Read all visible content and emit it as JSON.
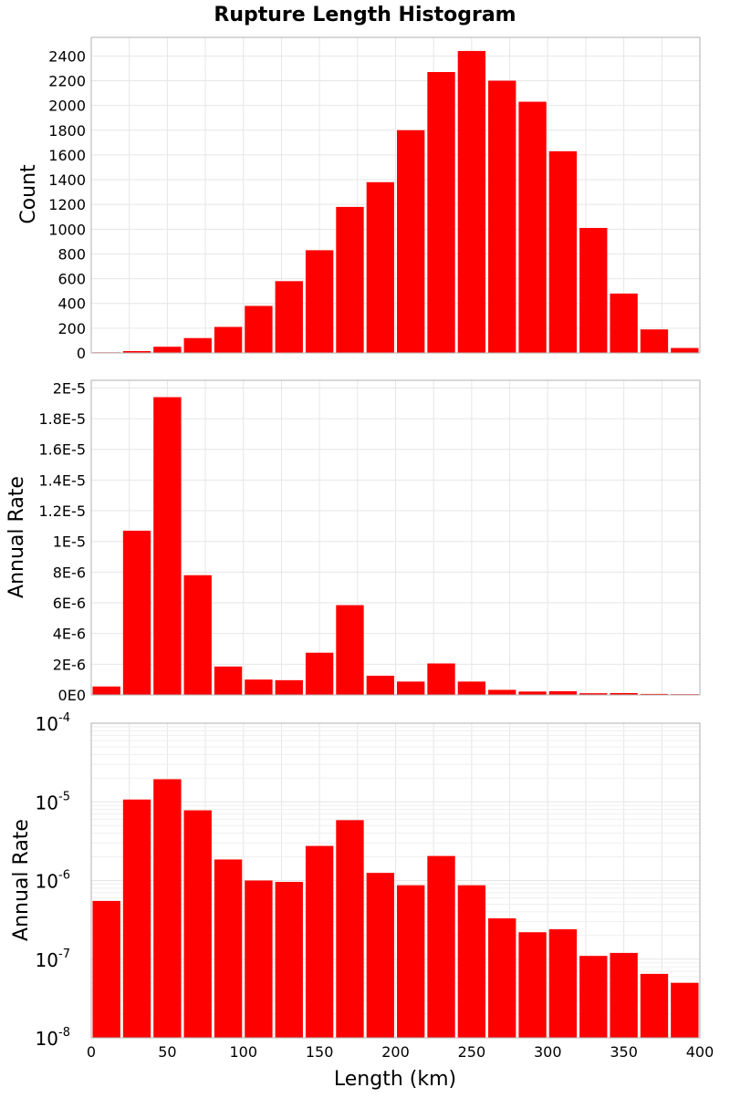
{
  "title": "Rupture Length Histogram",
  "colors": {
    "bar": "#ff0000"
  },
  "chart_data": [
    {
      "type": "bar",
      "bin_width": 20,
      "x": [
        10,
        30,
        50,
        70,
        90,
        110,
        130,
        150,
        170,
        190,
        210,
        230,
        250,
        270,
        290,
        310,
        330,
        350,
        370,
        390
      ],
      "values": [
        5,
        15,
        50,
        120,
        210,
        380,
        580,
        830,
        1180,
        1380,
        1800,
        2270,
        2440,
        2200,
        2030,
        1630,
        1010,
        480,
        190,
        40
      ],
      "xlim": [
        0,
        400
      ],
      "ylim": [
        0,
        2550
      ],
      "yticks": [
        0,
        200,
        400,
        600,
        800,
        1000,
        1200,
        1400,
        1600,
        1800,
        2000,
        2200,
        2400
      ],
      "ytick_labels": [
        "0",
        "200",
        "400",
        "600",
        "800",
        "1000",
        "1200",
        "1400",
        "1600",
        "1800",
        "2000",
        "2200",
        "2400"
      ],
      "ylabel": "Count",
      "grid": true
    },
    {
      "type": "bar",
      "bin_width": 20,
      "x": [
        10,
        30,
        50,
        70,
        90,
        110,
        130,
        150,
        170,
        190,
        210,
        230,
        250,
        270,
        290,
        310,
        330,
        350,
        370,
        390
      ],
      "values": [
        5.5e-07,
        1.07e-05,
        1.94e-05,
        7.8e-06,
        1.85e-06,
        1e-06,
        9.6e-07,
        2.75e-06,
        5.85e-06,
        1.25e-06,
        8.7e-07,
        2.05e-06,
        8.7e-07,
        3.3e-07,
        2.2e-07,
        2.4e-07,
        1.1e-07,
        1.2e-07,
        6.5e-08,
        5e-08
      ],
      "xlim": [
        0,
        400
      ],
      "ylim": [
        0,
        2.05e-05
      ],
      "yticks": [
        0,
        2e-06,
        4e-06,
        6e-06,
        8e-06,
        1e-05,
        1.2e-05,
        1.4e-05,
        1.6e-05,
        1.8e-05,
        2e-05
      ],
      "ytick_labels": [
        "0E0",
        "2E-6",
        "4E-6",
        "6E-6",
        "8E-6",
        "1E-5",
        "1.2E-5",
        "1.4E-5",
        "1.6E-5",
        "1.8E-5",
        "2E-5"
      ],
      "ylabel": "Annual Rate",
      "grid": true
    },
    {
      "type": "bar",
      "yscale": "log",
      "bin_width": 20,
      "x": [
        10,
        30,
        50,
        70,
        90,
        110,
        130,
        150,
        170,
        190,
        210,
        230,
        250,
        270,
        290,
        310,
        330,
        350,
        370,
        390
      ],
      "values": [
        5.5e-07,
        1.07e-05,
        1.94e-05,
        7.8e-06,
        1.85e-06,
        1e-06,
        9.6e-07,
        2.75e-06,
        5.85e-06,
        1.25e-06,
        8.7e-07,
        2.05e-06,
        8.7e-07,
        3.3e-07,
        2.2e-07,
        2.4e-07,
        1.1e-07,
        1.2e-07,
        6.5e-08,
        5e-08
      ],
      "xlim": [
        0,
        400
      ],
      "ylim": [
        1e-08,
        0.0001
      ],
      "ytick_exponents": [
        -8,
        -7,
        -6,
        -5,
        -4
      ],
      "ytick_base": "10",
      "ylabel": "Annual Rate",
      "xticks": [
        0,
        50,
        100,
        150,
        200,
        250,
        300,
        350,
        400
      ],
      "xtick_labels": [
        "0",
        "50",
        "100",
        "150",
        "200",
        "250",
        "300",
        "350",
        "400"
      ],
      "xlabel": "Length (km)",
      "grid": true
    }
  ]
}
